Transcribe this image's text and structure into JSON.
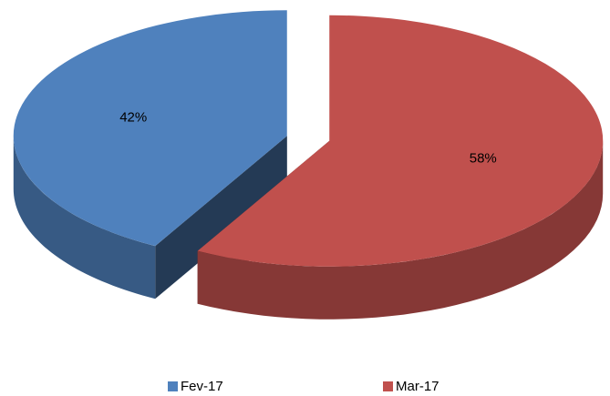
{
  "chart_data": {
    "type": "pie",
    "categories": [
      "Fev-17",
      "Mar-17"
    ],
    "values": [
      42,
      58
    ],
    "value_labels": [
      "42%",
      "58%"
    ],
    "colors": [
      "#4f81bd",
      "#c0504d"
    ],
    "legend": "bottom",
    "exploded": true,
    "three_d": true
  }
}
